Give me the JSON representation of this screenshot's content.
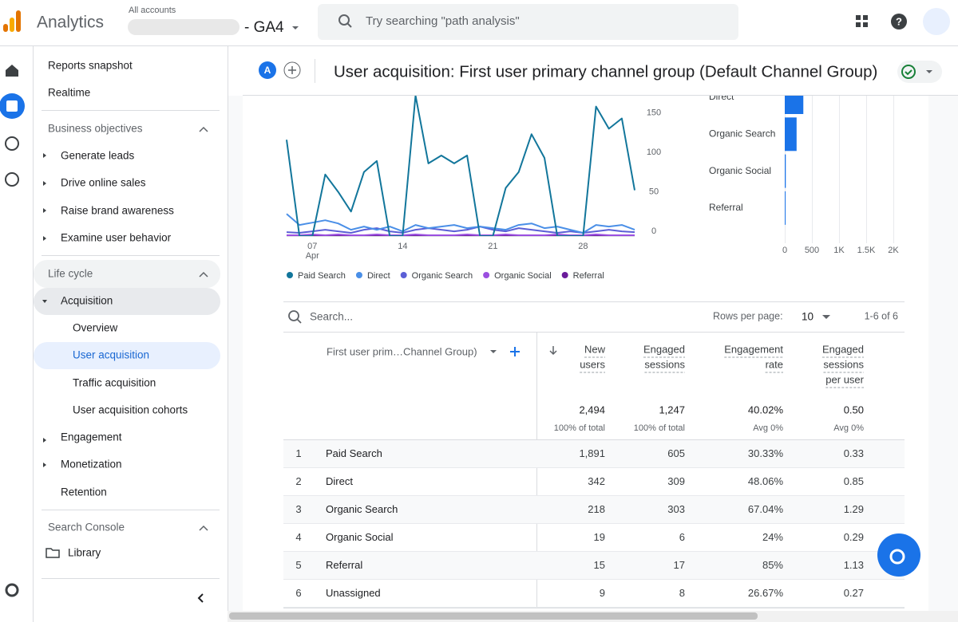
{
  "header": {
    "product": "Analytics",
    "breadcrumb": "All accounts",
    "property": "- GA4",
    "search_placeholder": "Try searching \"path analysis\""
  },
  "nav": {
    "top": [
      "Reports snapshot",
      "Realtime"
    ],
    "business": {
      "title": "Business objectives",
      "items": [
        "Generate leads",
        "Drive online sales",
        "Raise brand awareness",
        "Examine user behavior"
      ]
    },
    "lifecycle": {
      "title": "Life cycle",
      "acquisition": "Acquisition",
      "sub": [
        "Overview",
        "User acquisition",
        "Traffic acquisition",
        "User acquisition cohorts"
      ],
      "others": [
        "Engagement",
        "Monetization",
        "Retention"
      ]
    },
    "search_console": "Search Console",
    "library": "Library"
  },
  "report": {
    "avatar": "A",
    "title": "User acquisition: First user primary channel group (Default Channel Group)"
  },
  "chart_data": [
    {
      "type": "line",
      "categories": [
        null,
        null,
        "07",
        null,
        null,
        null,
        null,
        null,
        null,
        "14",
        null,
        null,
        null,
        null,
        null,
        null,
        "21",
        null,
        null,
        null,
        null,
        null,
        null,
        "28",
        null,
        null,
        null,
        null
      ],
      "x_sublabel": "Apr",
      "ylim": [
        0,
        180
      ],
      "yticks": [
        0,
        50,
        100,
        150
      ],
      "grid": false,
      "series": [
        {
          "name": "Paid Search",
          "color": "#12769b",
          "values": [
            122,
            0,
            0,
            78,
            56,
            31,
            81,
            95,
            0,
            0,
            178,
            92,
            102,
            92,
            102,
            0,
            0,
            61,
            81,
            129,
            99,
            0,
            0,
            0,
            164,
            136,
            149,
            58
          ]
        },
        {
          "name": "Direct",
          "color": "#4a8fe7",
          "values": [
            28,
            14,
            17,
            20,
            16,
            8,
            12,
            8,
            12,
            6,
            14,
            10,
            12,
            14,
            10,
            12,
            10,
            8,
            14,
            16,
            10,
            12,
            8,
            4,
            14,
            12,
            14,
            8
          ]
        },
        {
          "name": "Organic Search",
          "color": "#5b5fd6",
          "values": [
            5,
            4,
            6,
            8,
            6,
            4,
            8,
            10,
            6,
            4,
            8,
            10,
            8,
            6,
            8,
            12,
            8,
            6,
            10,
            8,
            6,
            4,
            6,
            4,
            6,
            8,
            6,
            5
          ]
        },
        {
          "name": "Organic Social",
          "color": "#9b4fe0",
          "values": [
            1,
            1,
            2,
            1,
            2,
            1,
            1,
            2,
            1,
            1,
            2,
            1,
            1,
            1,
            2,
            1,
            1,
            2,
            1,
            1,
            1,
            2,
            1,
            1,
            2,
            1,
            1,
            1
          ]
        },
        {
          "name": "Referral",
          "color": "#6a1b9a",
          "values": [
            0,
            1,
            0,
            1,
            0,
            0,
            1,
            0,
            1,
            0,
            0,
            1,
            0,
            1,
            0,
            0,
            1,
            0,
            1,
            0,
            0,
            1,
            0,
            0,
            1,
            0,
            1,
            0
          ]
        }
      ]
    },
    {
      "type": "hbar",
      "color": "#1a73e8",
      "categories": [
        "Direct",
        "Organic Search",
        "Organic Social",
        "Referral"
      ],
      "values": [
        342,
        218,
        19,
        15
      ],
      "xlim": [
        0,
        2000
      ],
      "xticks": [
        0,
        500,
        {
          "value": 1000,
          "label": "1K"
        },
        {
          "value": 1500,
          "label": "1.5K"
        },
        {
          "value": 2000,
          "label": "2K"
        }
      ],
      "grid": true
    }
  ],
  "table": {
    "search_placeholder": "Search...",
    "rows_per_page_label": "Rows per page:",
    "rows_per_page": "10",
    "pagination": "1-6 of 6",
    "dimension": "First user prim…Channel Group)",
    "metrics": [
      [
        "New",
        "users"
      ],
      [
        "Engaged",
        "sessions"
      ],
      [
        "Engagement",
        "rate"
      ],
      [
        "Engaged",
        "sessions",
        "per user"
      ]
    ],
    "totals": [
      {
        "value": "2,494",
        "note": "100% of total"
      },
      {
        "value": "1,247",
        "note": "100% of total"
      },
      {
        "value": "40.02%",
        "note": "Avg 0%"
      },
      {
        "value": "0.50",
        "note": "Avg 0%"
      }
    ],
    "rows": [
      [
        "1",
        "Paid Search",
        "1,891",
        "605",
        "30.33%",
        "0.33"
      ],
      [
        "2",
        "Direct",
        "342",
        "309",
        "48.06%",
        "0.85"
      ],
      [
        "3",
        "Organic Search",
        "218",
        "303",
        "67.04%",
        "1.29"
      ],
      [
        "4",
        "Organic Social",
        "19",
        "6",
        "24%",
        "0.29"
      ],
      [
        "5",
        "Referral",
        "15",
        "17",
        "85%",
        "1.13"
      ],
      [
        "6",
        "Unassigned",
        "9",
        "8",
        "26.67%",
        "0.27"
      ]
    ]
  }
}
